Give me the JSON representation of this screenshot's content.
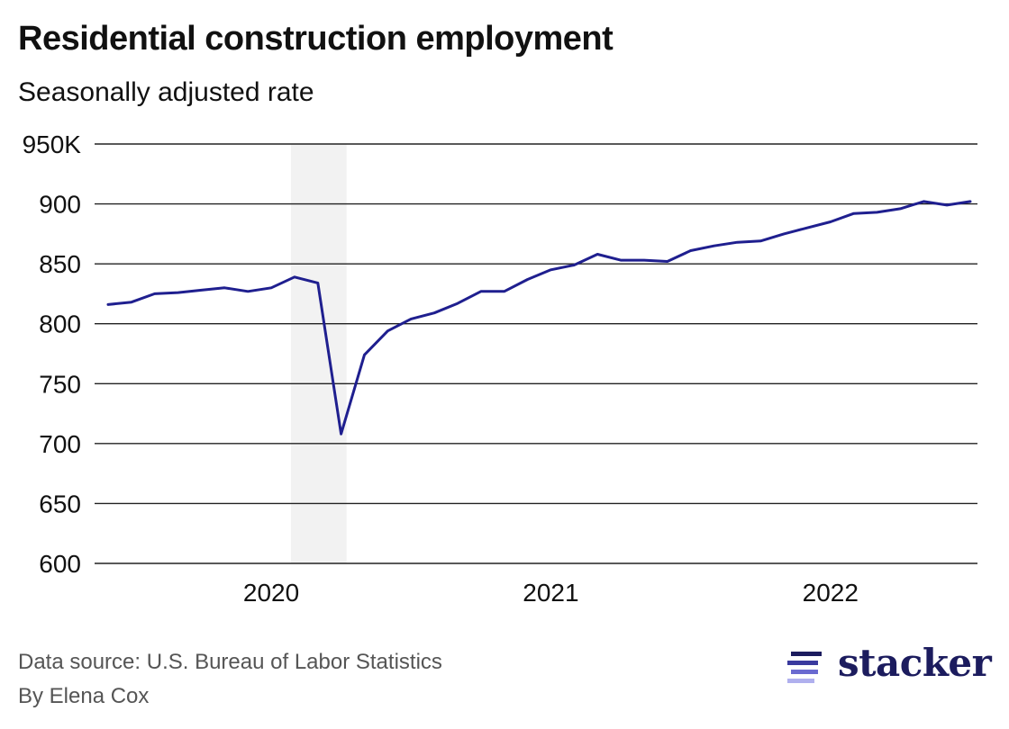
{
  "header": {
    "title": "Residential construction employment",
    "subtitle": "Seasonally adjusted rate"
  },
  "footer": {
    "source": "Data source: U.S. Bureau of Labor Statistics",
    "byline": "By Elena Cox"
  },
  "logo": {
    "text": "stacker",
    "icon": "stacker-stripes-icon",
    "color": "#1c1c5e"
  },
  "chart_data": {
    "type": "line",
    "title": "Residential construction employment",
    "subtitle": "Seasonally adjusted rate",
    "xlabel": "",
    "ylabel": "",
    "ylim": [
      600,
      950
    ],
    "xlim": [
      "2019-06",
      "2022-07"
    ],
    "yticks": [
      600,
      650,
      700,
      750,
      800,
      850,
      900,
      950
    ],
    "ytick_labels": [
      "600",
      "650",
      "700",
      "750",
      "800",
      "850",
      "900",
      "950K"
    ],
    "xticks": [
      "2020-01",
      "2021-01",
      "2022-01"
    ],
    "xtick_labels": [
      "2020",
      "2021",
      "2022"
    ],
    "grid": "horizontal",
    "line_color": "#1f1f8f",
    "shade_color": "#f2f2f2",
    "shaded_range": [
      "2020-02",
      "2020-04"
    ],
    "series": [
      {
        "x": [
          "2019-06",
          "2019-07",
          "2019-08",
          "2019-09",
          "2019-10",
          "2019-11",
          "2019-12",
          "2020-01",
          "2020-02",
          "2020-03",
          "2020-04",
          "2020-05",
          "2020-06",
          "2020-07",
          "2020-08",
          "2020-09",
          "2020-10",
          "2020-11",
          "2020-12",
          "2021-01",
          "2021-02",
          "2021-03",
          "2021-04",
          "2021-05",
          "2021-06",
          "2021-07",
          "2021-08",
          "2021-09",
          "2021-10",
          "2021-11",
          "2021-12",
          "2022-01",
          "2022-02",
          "2022-03",
          "2022-04",
          "2022-05",
          "2022-06",
          "2022-07"
        ],
        "values": [
          816,
          818,
          825,
          826,
          828,
          830,
          827,
          830,
          839,
          834,
          708,
          774,
          794,
          804,
          809,
          817,
          827,
          827,
          837,
          845,
          849,
          858,
          853,
          853,
          852,
          861,
          865,
          868,
          869,
          875,
          880,
          885,
          892,
          893,
          896,
          902,
          899,
          902
        ]
      }
    ]
  }
}
